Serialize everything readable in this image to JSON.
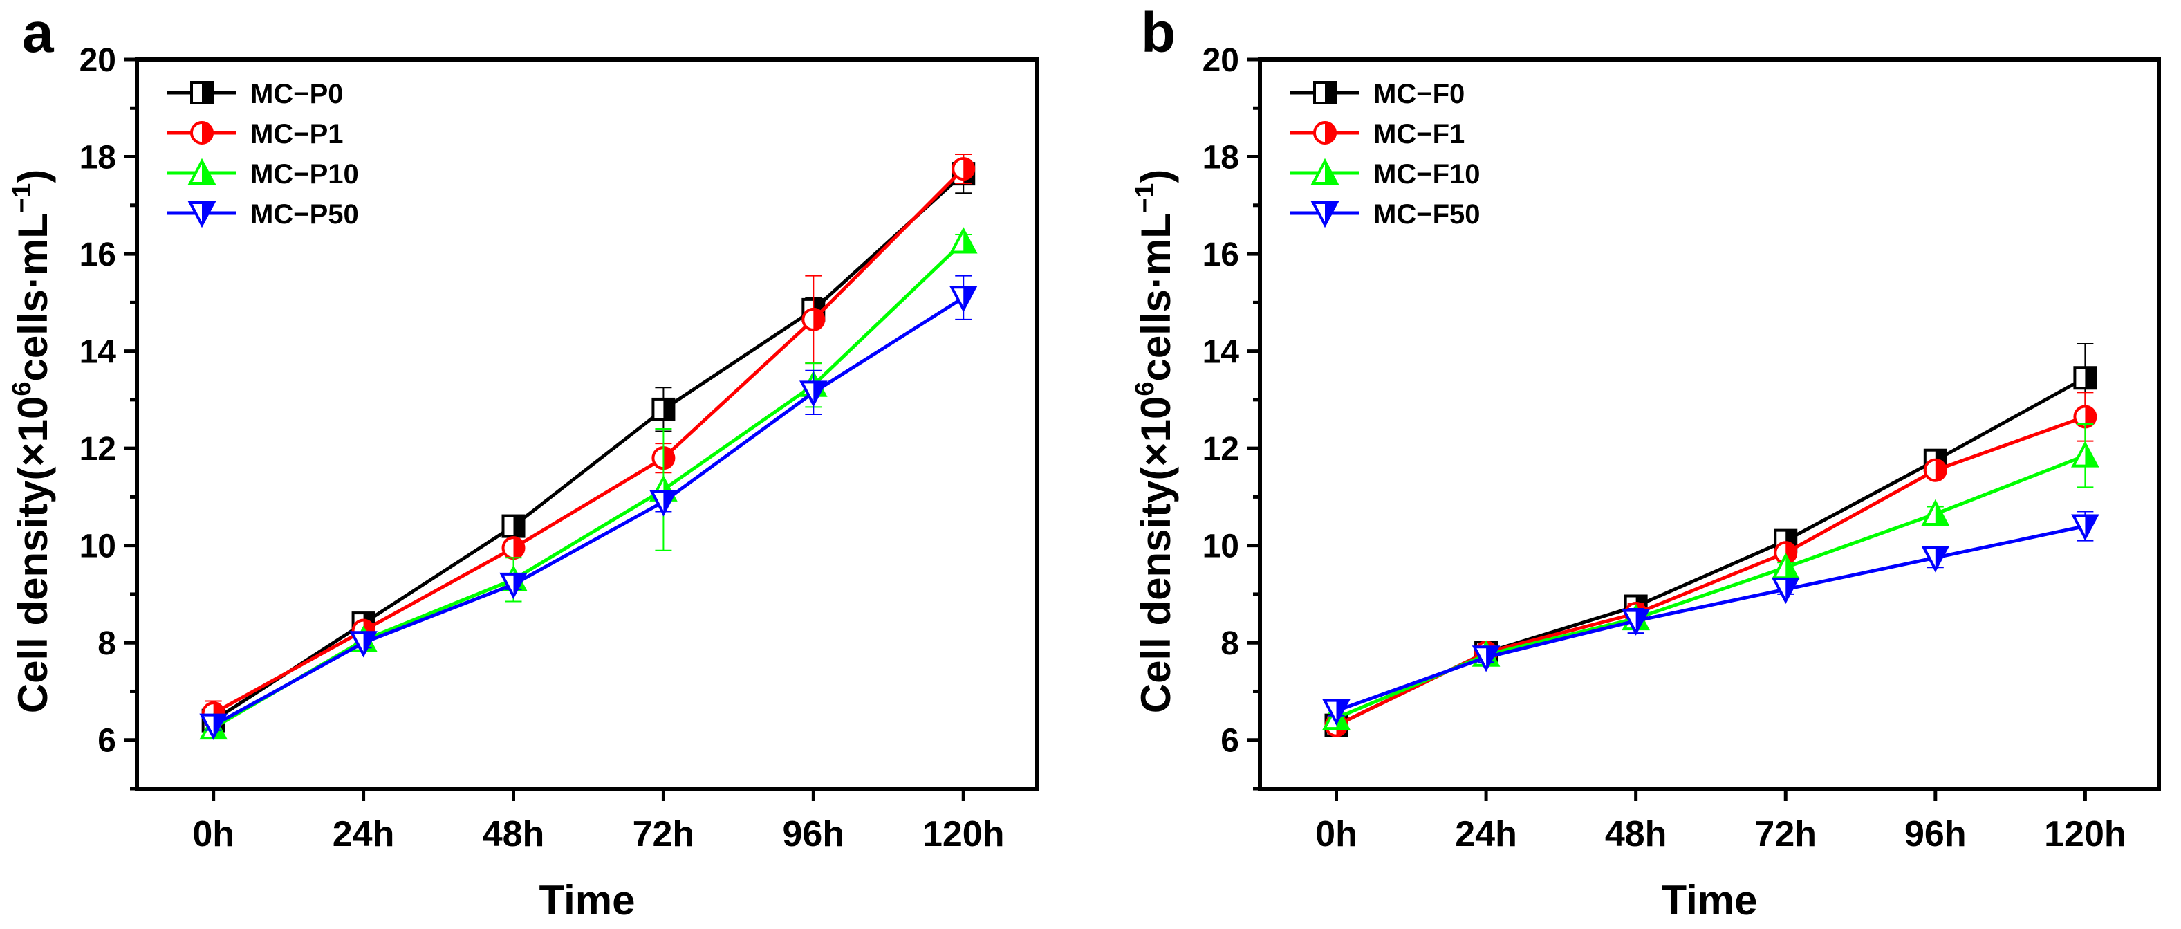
{
  "chart_data": [
    {
      "panel_label": "a",
      "type": "line",
      "categories": [
        "0h",
        "24h",
        "48h",
        "72h",
        "96h",
        "120h"
      ],
      "xlabel": "Time",
      "ylabel": "Cell density",
      "ylabel_unit_prefix": "(×10",
      "ylabel_unit_exp": "6",
      "ylabel_unit_mid": "cells·mL",
      "ylabel_unit_exp2": "−1",
      "ylabel_unit_suffix": ")",
      "ylim": [
        5,
        20
      ],
      "yticks": [
        6,
        8,
        10,
        12,
        14,
        16,
        18,
        20
      ],
      "legend_position": "top-left",
      "series": [
        {
          "name": "MC−P0",
          "color": "#000000",
          "marker": "square",
          "values": [
            6.4,
            8.4,
            10.4,
            12.8,
            14.85,
            17.65
          ],
          "errors": [
            0.1,
            0.1,
            0.1,
            0.45,
            0.25,
            0.4
          ]
        },
        {
          "name": "MC−P1",
          "color": "#ff0000",
          "marker": "circle",
          "values": [
            6.55,
            8.25,
            9.95,
            11.8,
            14.65,
            17.75
          ],
          "errors": [
            0.25,
            0.1,
            0.1,
            0.3,
            0.9,
            0.3
          ]
        },
        {
          "name": "MC−P10",
          "color": "#00ff00",
          "marker": "triangle-up",
          "values": [
            6.25,
            8.05,
            9.3,
            11.15,
            13.3,
            16.25
          ],
          "errors": [
            0.15,
            0.1,
            0.45,
            1.25,
            0.45,
            0.15
          ]
        },
        {
          "name": "MC−P50",
          "color": "#0000ff",
          "marker": "triangle-down",
          "values": [
            6.3,
            8.0,
            9.2,
            10.9,
            13.15,
            15.1
          ],
          "errors": [
            0.1,
            0.1,
            0.1,
            0.2,
            0.45,
            0.45
          ]
        }
      ]
    },
    {
      "panel_label": "b",
      "type": "line",
      "categories": [
        "0h",
        "24h",
        "48h",
        "72h",
        "96h",
        "120h"
      ],
      "xlabel": "Time",
      "ylabel": "Cell density",
      "ylabel_unit_prefix": "(×10",
      "ylabel_unit_exp": "6",
      "ylabel_unit_mid": "cells·mL",
      "ylabel_unit_exp2": "−1",
      "ylabel_unit_suffix": ")",
      "ylim": [
        5,
        20
      ],
      "yticks": [
        6,
        8,
        10,
        12,
        14,
        16,
        18,
        20
      ],
      "legend_position": "top-left",
      "series": [
        {
          "name": "MC−F0",
          "color": "#000000",
          "marker": "square",
          "values": [
            6.3,
            7.8,
            8.75,
            10.1,
            11.75,
            13.45
          ],
          "errors": [
            0.1,
            0.1,
            0.2,
            0.1,
            0.1,
            0.7
          ]
        },
        {
          "name": "MC−F1",
          "color": "#ff0000",
          "marker": "circle",
          "values": [
            6.3,
            7.8,
            8.6,
            9.85,
            11.55,
            12.65
          ],
          "errors": [
            0.1,
            0.1,
            0.2,
            0.15,
            0.15,
            0.5
          ]
        },
        {
          "name": "MC−F10",
          "color": "#00ff00",
          "marker": "triangle-up",
          "values": [
            6.45,
            7.75,
            8.5,
            9.55,
            10.65,
            11.85
          ],
          "errors": [
            0.1,
            0.1,
            0.1,
            0.1,
            0.15,
            0.65
          ]
        },
        {
          "name": "MC−F50",
          "color": "#0000ff",
          "marker": "triangle-down",
          "values": [
            6.6,
            7.7,
            8.45,
            9.1,
            9.75,
            10.4
          ],
          "errors": [
            0.1,
            0.1,
            0.25,
            0.1,
            0.2,
            0.3
          ]
        }
      ]
    }
  ]
}
